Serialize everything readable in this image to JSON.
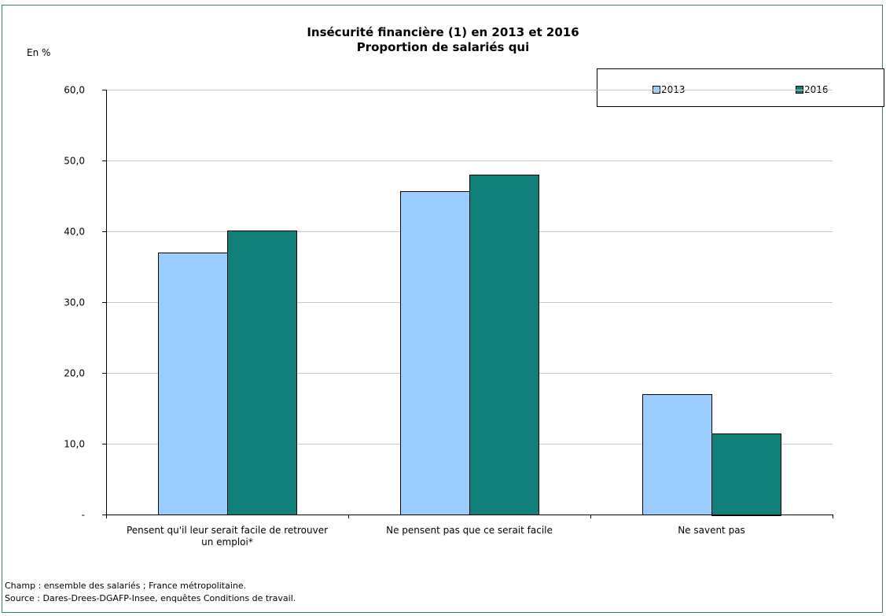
{
  "chart_data": {
    "type": "bar",
    "title": "Insécurité financière (1) en 2013 et 2016",
    "subtitle": "Proportion de salariés qui",
    "ylabel": "En %",
    "ylim": [
      0,
      60
    ],
    "yticks": [
      "-",
      "10,0",
      "20,0",
      "30,0",
      "40,0",
      "50,0",
      "60,0"
    ],
    "categories": [
      [
        "Pensent qu'il leur serait facile de retrouver",
        "un emploi*"
      ],
      [
        "Ne pensent pas que ce serait facile"
      ],
      [
        "Ne savent pas"
      ]
    ],
    "series": [
      {
        "name": "2013",
        "values": [
          37.0,
          45.7,
          17.0
        ],
        "color": "#99ccff"
      },
      {
        "name": "2016",
        "values": [
          40.1,
          48.0,
          11.5
        ],
        "color": "#12807a"
      }
    ],
    "grid": true,
    "legend_position": "top-right"
  },
  "notes": {
    "champ": "Champ : ensemble des salariés ; France métropolitaine.",
    "source": "Source : Dares-Drees-DGAFP-Insee, enquêtes Conditions de travail."
  }
}
